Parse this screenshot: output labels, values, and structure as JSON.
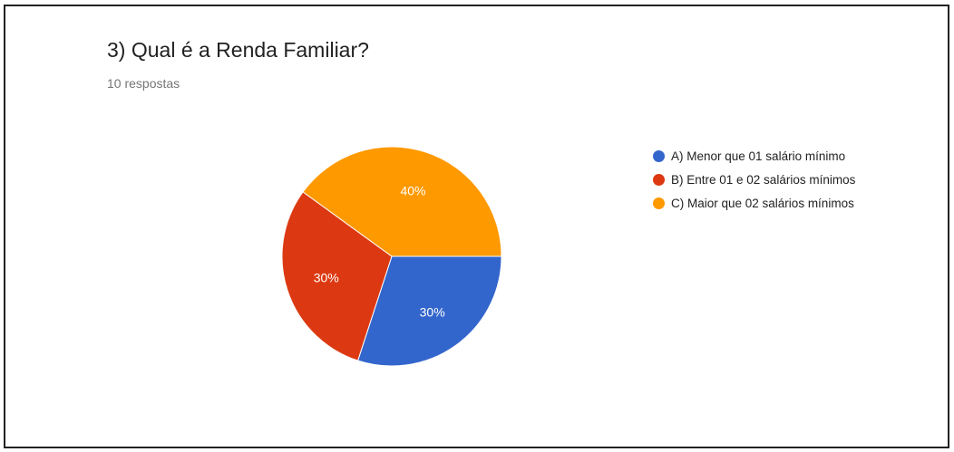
{
  "header": {
    "title": "3) Qual é a Renda Familiar?",
    "subtitle": "10 respostas"
  },
  "chart_data": {
    "type": "pie",
    "categories": [
      "A) Menor que 01 salário mínimo",
      "B) Entre 01 e 02 salários mínimos",
      "C) Maior que 02 salários mínimos"
    ],
    "values": [
      30,
      30,
      40
    ],
    "labels": [
      "30%",
      "30%",
      "40%"
    ],
    "colors": [
      "#3366cc",
      "#dc3912",
      "#ff9900"
    ],
    "legend_position": "right"
  }
}
